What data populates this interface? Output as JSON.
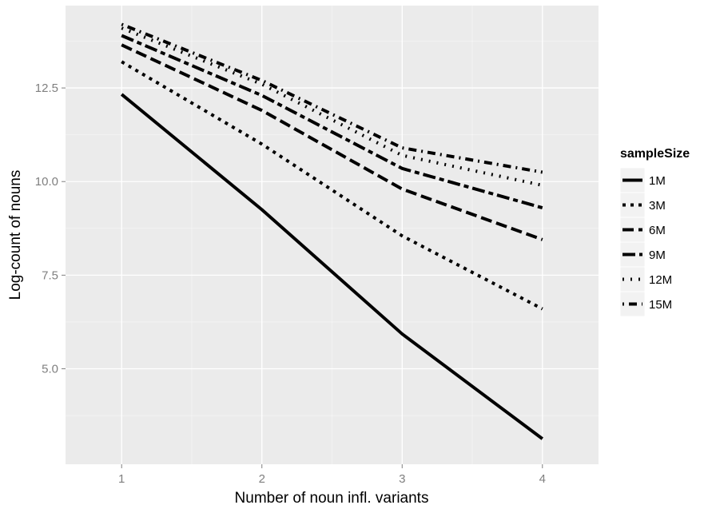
{
  "chart_data": {
    "type": "line",
    "xlabel": "Number of noun infl. variants",
    "ylabel": "Log-count of nouns",
    "x": [
      1,
      2,
      3,
      4
    ],
    "xticks": [
      "1",
      "2",
      "3",
      "4"
    ],
    "yticks": [
      "5.0",
      "7.5",
      "10.0",
      "12.5"
    ],
    "xlim": [
      0.6,
      4.4
    ],
    "ylim": [
      2.45,
      14.7
    ],
    "grid": true,
    "legend_title": "sampleSize",
    "legend_position": "right",
    "series": [
      {
        "name": "1M",
        "values": [
          12.33,
          9.25,
          5.93,
          3.13
        ],
        "dash": "solid"
      },
      {
        "name": "3M",
        "values": [
          13.2,
          11.0,
          8.55,
          6.6
        ],
        "dash": "short"
      },
      {
        "name": "6M",
        "values": [
          13.65,
          11.9,
          9.8,
          8.45
        ],
        "dash": "long"
      },
      {
        "name": "9M",
        "values": [
          13.9,
          12.3,
          10.35,
          9.3
        ],
        "dash": "longshort"
      },
      {
        "name": "12M",
        "values": [
          14.1,
          12.6,
          10.7,
          9.9
        ],
        "dash": "dotted"
      },
      {
        "name": "15M",
        "values": [
          14.2,
          12.7,
          10.9,
          10.25
        ],
        "dash": "dotdash"
      }
    ],
    "colors": {
      "panel": "#ebebeb",
      "grid": "#ffffff",
      "line": "#000000",
      "tick": "#7f7f7f"
    }
  }
}
